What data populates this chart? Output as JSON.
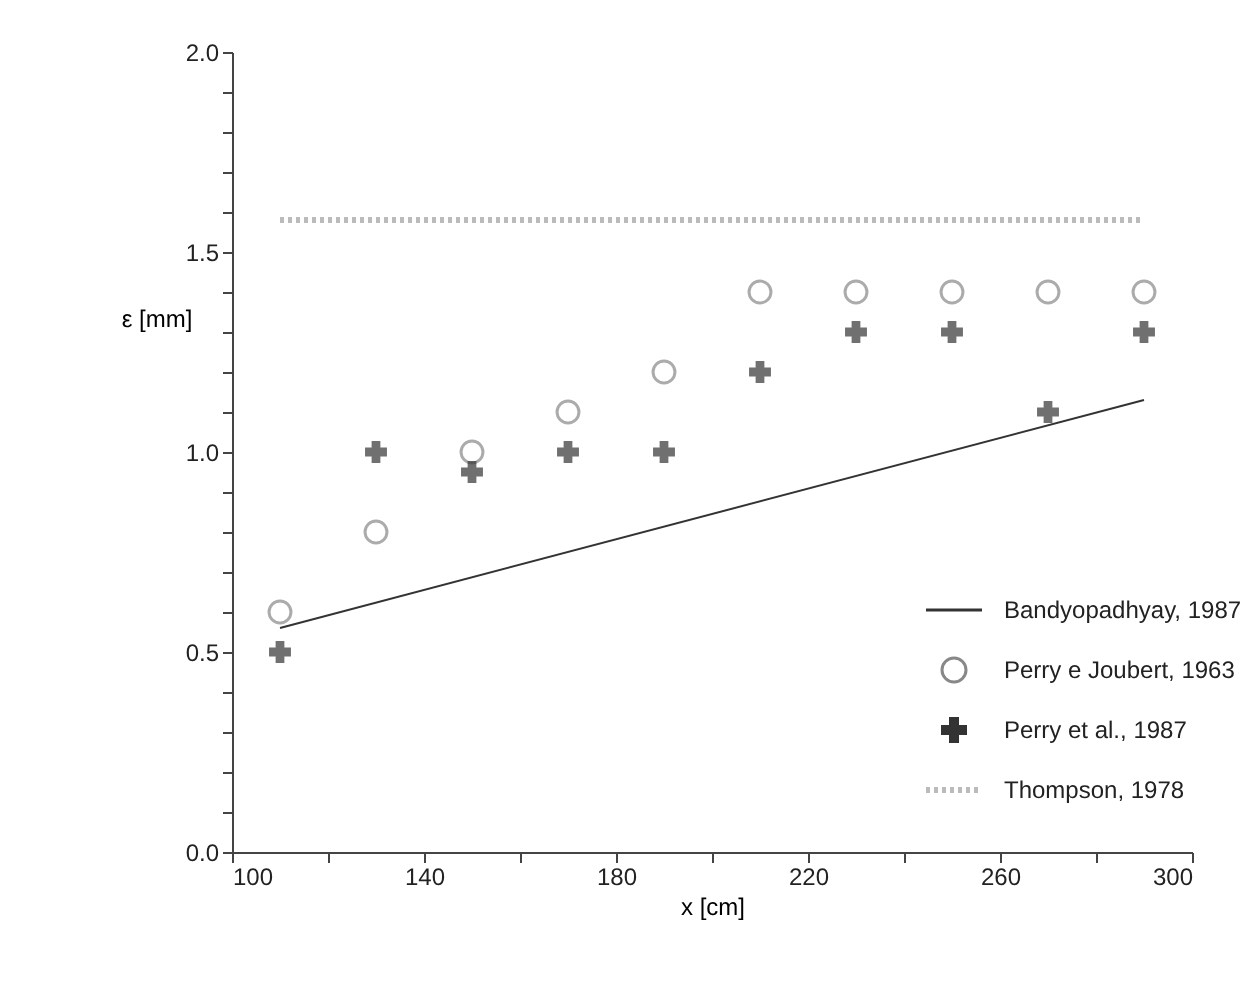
{
  "chart_data": {
    "type": "scatter",
    "xlabel": "x [cm]",
    "ylabel": "ε [mm]",
    "xlim": [
      100,
      300
    ],
    "xticks": [
      100,
      {
        "value": 120,
        "label": null
      },
      140,
      {
        "value": 160,
        "label": null
      },
      180,
      {
        "value": 200,
        "label": null
      },
      220,
      {
        "value": 240,
        "label": null
      },
      260,
      {
        "value": 280,
        "label": null
      },
      300
    ],
    "ylim": [
      0,
      2
    ],
    "yticks": [
      {
        "value": 0,
        "label": "0.0"
      },
      {
        "value": 0.1,
        "label": null
      },
      {
        "value": 0.2,
        "label": null
      },
      {
        "value": 0.3,
        "label": null
      },
      {
        "value": 0.4,
        "label": null
      },
      0.5,
      {
        "value": 0.6,
        "label": null
      },
      {
        "value": 0.7,
        "label": null
      },
      {
        "value": 0.8,
        "label": null
      },
      {
        "value": 0.9,
        "label": null
      },
      {
        "value": 1,
        "label": "1.0"
      },
      {
        "value": 1.1,
        "label": null
      },
      {
        "value": 1.2,
        "label": null
      },
      {
        "value": 1.3,
        "label": null
      },
      {
        "value": 1.4,
        "label": null
      },
      1.5,
      {
        "value": 1.6,
        "label": null
      },
      {
        "value": 1.7,
        "label": null
      },
      {
        "value": 1.8,
        "label": null
      },
      {
        "value": 1.9,
        "label": null
      },
      {
        "value": 2,
        "label": "2.0"
      }
    ],
    "grid": false,
    "legend": "bottom right",
    "series": [
      {
        "name": "Bandyopadhyay, 1987",
        "type": "line",
        "line_style": "solid",
        "color": "#333333",
        "x": [
          110,
          290
        ],
        "values": [
          0.56,
          1.13
        ]
      },
      {
        "name": "Perry e Joubert, 1963",
        "type": "scatter",
        "marker": "circle",
        "color": "#888888",
        "x": [
          110,
          130,
          150,
          170,
          190,
          210,
          230,
          250,
          270,
          290
        ],
        "values": [
          0.6,
          0.8,
          1.0,
          1.1,
          1.2,
          1.4,
          1.4,
          1.4,
          1.4,
          1.4
        ]
      },
      {
        "name": "Perry et al., 1987",
        "type": "scatter",
        "marker": "cross",
        "color": "#333333",
        "x": [
          110,
          130,
          150,
          170,
          190,
          210,
          230,
          250,
          270,
          290
        ],
        "values": [
          0.5,
          1.0,
          0.95,
          1.0,
          1.0,
          1.2,
          1.3,
          1.3,
          1.1,
          1.3
        ]
      },
      {
        "name": "Thompson, 1978",
        "type": "line",
        "line_style": "dotted",
        "color": "#bbbbbb",
        "x": [
          110,
          290
        ],
        "values": [
          1.58,
          1.58
        ]
      }
    ]
  }
}
